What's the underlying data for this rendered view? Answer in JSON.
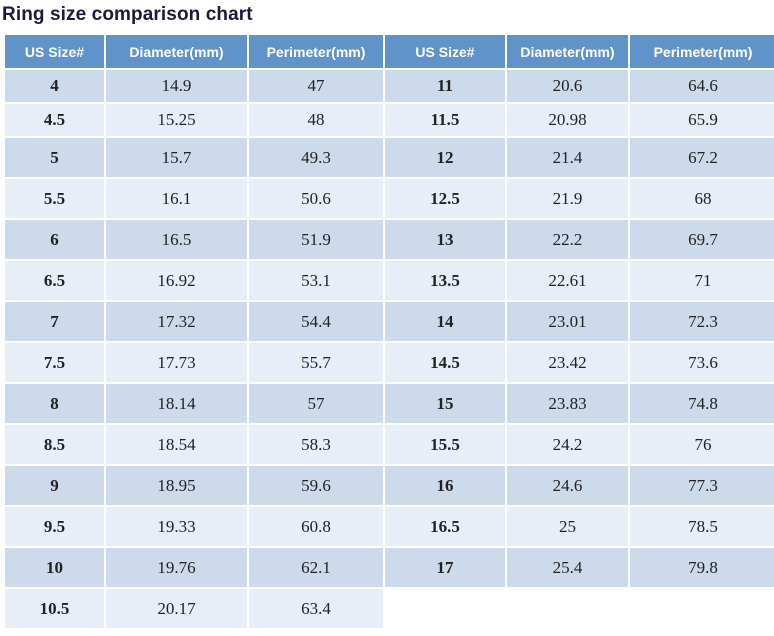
{
  "title": "Ring size comparison chart",
  "headers": [
    "US Size#",
    "Diameter(mm)",
    "Perimeter(mm)",
    "US Size#",
    "Diameter(mm)",
    "Perimeter(mm)"
  ],
  "rows": [
    [
      "4",
      "14.9",
      "47",
      "11",
      "20.6",
      "64.6"
    ],
    [
      "4.5",
      "15.25",
      "48",
      "11.5",
      "20.98",
      "65.9"
    ],
    [
      "5",
      "15.7",
      "49.3",
      "12",
      "21.4",
      "67.2"
    ],
    [
      "5.5",
      "16.1",
      "50.6",
      "12.5",
      "21.9",
      "68"
    ],
    [
      "6",
      "16.5",
      "51.9",
      "13",
      "22.2",
      "69.7"
    ],
    [
      "6.5",
      "16.92",
      "53.1",
      "13.5",
      "22.61",
      "71"
    ],
    [
      "7",
      "17.32",
      "54.4",
      "14",
      "23.01",
      "72.3"
    ],
    [
      "7.5",
      "17.73",
      "55.7",
      "14.5",
      "23.42",
      "73.6"
    ],
    [
      "8",
      "18.14",
      "57",
      "15",
      "23.83",
      "74.8"
    ],
    [
      "8.5",
      "18.54",
      "58.3",
      "15.5",
      "24.2",
      "76"
    ],
    [
      "9",
      "18.95",
      "59.6",
      "16",
      "24.6",
      "77.3"
    ],
    [
      "9.5",
      "19.33",
      "60.8",
      "16.5",
      "25",
      "78.5"
    ],
    [
      "10",
      "19.76",
      "62.1",
      "17",
      "25.4",
      "79.8"
    ],
    [
      "10.5",
      "20.17",
      "63.4",
      "",
      "",
      ""
    ]
  ],
  "colors": {
    "header_bg": "#5f93c9",
    "row_odd": "#cddaec",
    "row_even": "#e7eef7",
    "title": "#1a1a3a"
  }
}
